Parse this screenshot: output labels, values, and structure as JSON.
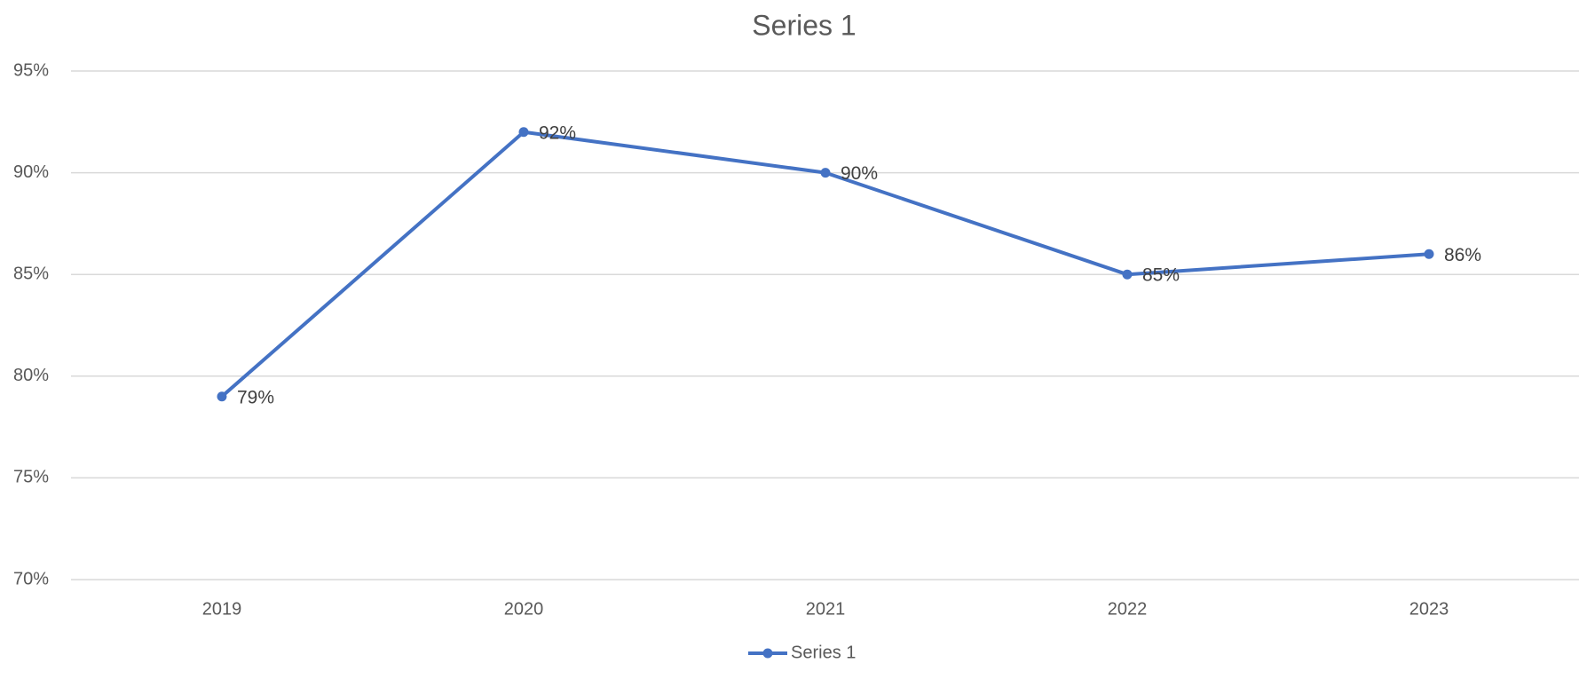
{
  "chart_data": {
    "type": "line",
    "title": "Series 1",
    "categories": [
      "2019",
      "2020",
      "2021",
      "2022",
      "2023"
    ],
    "series": [
      {
        "name": "Series 1",
        "color": "#4472c4",
        "values": [
          79,
          92,
          90,
          85,
          86
        ],
        "value_labels": [
          "79%",
          "92%",
          "90%",
          "85%",
          "86%"
        ]
      }
    ],
    "ylim": [
      70,
      95
    ],
    "yticks": [
      {
        "value": 70,
        "label": "70%"
      },
      {
        "value": 75,
        "label": "75%"
      },
      {
        "value": 80,
        "label": "80%"
      },
      {
        "value": 85,
        "label": "85%"
      },
      {
        "value": 90,
        "label": "90%"
      },
      {
        "value": 95,
        "label": "95%"
      }
    ],
    "grid": true,
    "legend": "bottom"
  }
}
